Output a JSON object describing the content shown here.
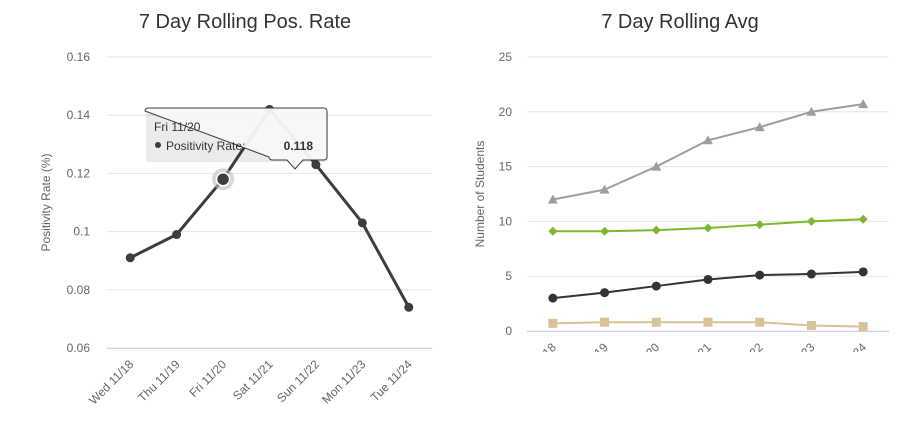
{
  "chart_data": [
    {
      "type": "line",
      "title": "7 Day Rolling Pos. Rate",
      "xlabel": "",
      "ylabel": "Positivity Rate (%)",
      "ylim": [
        0.06,
        0.16
      ],
      "yticks": [
        "0.06",
        "0.08",
        "0.1",
        "0.12",
        "0.14",
        "0.16"
      ],
      "grid": true,
      "categories": [
        "Wed 11/18",
        "Thu 11/19",
        "Fri 11/20",
        "Sat 11/21",
        "Sun 11/22",
        "Mon 11/23",
        "Tue 11/24"
      ],
      "series": [
        {
          "name": "Positivity Rate",
          "color": "#3d3d3d",
          "marker": "circle",
          "values": [
            0.091,
            0.099,
            0.118,
            0.142,
            0.123,
            0.103,
            0.074
          ]
        }
      ],
      "tooltip": {
        "header": "Fri 11/20",
        "series_label": "Positivity Rate:",
        "value": "0.118",
        "point_index": 2
      }
    },
    {
      "type": "line",
      "title": "7 Day Rolling Avg",
      "xlabel": "",
      "ylabel": "Number of Students",
      "ylim": [
        0,
        25
      ],
      "yticks": [
        "0",
        "5",
        "10",
        "15",
        "20",
        "25"
      ],
      "grid": true,
      "categories": [
        "18",
        "19",
        "20",
        "21",
        "22",
        "23",
        "24"
      ],
      "series": [
        {
          "color": "#9e9e9e",
          "marker": "triangle",
          "values": [
            12.0,
            12.9,
            15.0,
            17.4,
            18.6,
            20.0,
            20.7
          ]
        },
        {
          "color": "#7cb82f",
          "marker": "diamond",
          "values": [
            9.1,
            9.1,
            9.2,
            9.4,
            9.7,
            10.0,
            10.2
          ]
        },
        {
          "color": "#333333",
          "marker": "circle",
          "values": [
            3.0,
            3.5,
            4.1,
            4.7,
            5.1,
            5.2,
            5.4
          ]
        },
        {
          "color": "#d9c396",
          "marker": "square",
          "values": [
            0.7,
            0.8,
            0.8,
            0.8,
            0.8,
            0.5,
            0.4
          ]
        }
      ]
    }
  ]
}
